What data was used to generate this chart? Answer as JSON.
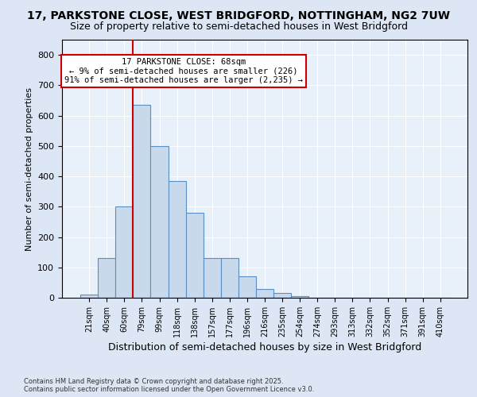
{
  "title1": "17, PARKSTONE CLOSE, WEST BRIDGFORD, NOTTINGHAM, NG2 7UW",
  "title2": "Size of property relative to semi-detached houses in West Bridgford",
  "xlabel": "Distribution of semi-detached houses by size in West Bridgford",
  "ylabel": "Number of semi-detached properties",
  "categories": [
    "21sqm",
    "40sqm",
    "60sqm",
    "79sqm",
    "99sqm",
    "118sqm",
    "138sqm",
    "157sqm",
    "177sqm",
    "196sqm",
    "216sqm",
    "235sqm",
    "254sqm",
    "274sqm",
    "293sqm",
    "313sqm",
    "332sqm",
    "352sqm",
    "371sqm",
    "391sqm",
    "410sqm"
  ],
  "values": [
    10,
    130,
    300,
    635,
    500,
    385,
    280,
    130,
    130,
    70,
    30,
    15,
    5,
    0,
    0,
    0,
    0,
    0,
    0,
    0,
    0
  ],
  "bar_color": "#c9d9ec",
  "bar_edge_color": "#5a8fc2",
  "vline_color": "#cc0000",
  "annotation_title": "17 PARKSTONE CLOSE: 68sqm",
  "annotation_line1": "← 9% of semi-detached houses are smaller (226)",
  "annotation_line2": "91% of semi-detached houses are larger (2,235) →",
  "annotation_box_color": "#ffffff",
  "annotation_box_edge": "#cc0000",
  "ylim": [
    0,
    850
  ],
  "yticks": [
    0,
    100,
    200,
    300,
    400,
    500,
    600,
    700,
    800
  ],
  "footnote1": "Contains HM Land Registry data © Crown copyright and database right 2025.",
  "footnote2": "Contains public sector information licensed under the Open Government Licence v3.0.",
  "bg_color": "#dce6f5",
  "plot_bg_color": "#e8f0fa",
  "title_fontsize": 10,
  "subtitle_fontsize": 9
}
